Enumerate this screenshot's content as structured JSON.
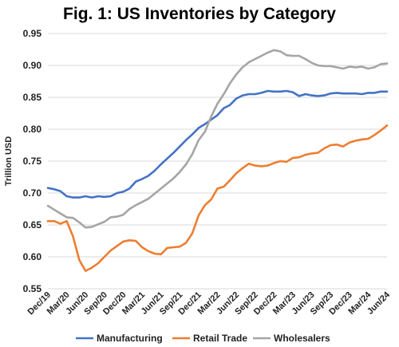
{
  "chart_data": {
    "type": "line",
    "title": "Fig. 1: US Inventories by Category",
    "xlabel": "",
    "ylabel": "Trillion USD",
    "ylim": [
      0.55,
      0.95
    ],
    "yticks": [
      "0.55",
      "0.60",
      "0.65",
      "0.70",
      "0.75",
      "0.80",
      "0.85",
      "0.90",
      "0.95"
    ],
    "x_tick_labels": [
      "Dec/19",
      "Mar/20",
      "Jun/20",
      "Sep/20",
      "Dec/20",
      "Mar/21",
      "Jun/21",
      "Sep/21",
      "Dec/21",
      "Mar/22",
      "Jun/22",
      "Sep/22",
      "Dec/22",
      "Mar/23",
      "Jun/23",
      "Sep/23",
      "Dec/23",
      "Mar/24",
      "Jun/24"
    ],
    "x": [
      "Dec/19",
      "Jan/20",
      "Feb/20",
      "Mar/20",
      "Apr/20",
      "May/20",
      "Jun/20",
      "Jul/20",
      "Aug/20",
      "Sep/20",
      "Oct/20",
      "Nov/20",
      "Dec/20",
      "Jan/21",
      "Feb/21",
      "Mar/21",
      "Apr/21",
      "May/21",
      "Jun/21",
      "Jul/21",
      "Aug/21",
      "Sep/21",
      "Oct/21",
      "Nov/21",
      "Dec/21",
      "Jan/22",
      "Feb/22",
      "Mar/22",
      "Apr/22",
      "May/22",
      "Jun/22",
      "Jul/22",
      "Aug/22",
      "Sep/22",
      "Oct/22",
      "Nov/22",
      "Dec/22",
      "Jan/23",
      "Feb/23",
      "Mar/23",
      "Apr/23",
      "May/23",
      "Jun/23",
      "Jul/23",
      "Aug/23",
      "Sep/23",
      "Oct/23",
      "Nov/23",
      "Dec/23",
      "Jan/24",
      "Feb/24",
      "Mar/24",
      "Apr/24",
      "May/24",
      "Jun/24"
    ],
    "grid": true,
    "legend_position": "bottom",
    "series": [
      {
        "name": "Manufacturing",
        "color": "#4472C4",
        "values": [
          0.708,
          0.706,
          0.703,
          0.695,
          0.693,
          0.693,
          0.695,
          0.693,
          0.695,
          0.694,
          0.695,
          0.7,
          0.702,
          0.707,
          0.718,
          0.722,
          0.727,
          0.735,
          0.745,
          0.754,
          0.763,
          0.773,
          0.783,
          0.792,
          0.802,
          0.808,
          0.815,
          0.822,
          0.833,
          0.838,
          0.848,
          0.853,
          0.855,
          0.855,
          0.857,
          0.86,
          0.859,
          0.859,
          0.86,
          0.858,
          0.852,
          0.855,
          0.853,
          0.852,
          0.853,
          0.856,
          0.857,
          0.856,
          0.856,
          0.856,
          0.855,
          0.857,
          0.857,
          0.859,
          0.859
        ]
      },
      {
        "name": "Retail Trade",
        "color": "#ED7D31",
        "values": [
          0.656,
          0.656,
          0.652,
          0.656,
          0.632,
          0.595,
          0.578,
          0.583,
          0.59,
          0.6,
          0.61,
          0.617,
          0.624,
          0.626,
          0.625,
          0.615,
          0.609,
          0.605,
          0.604,
          0.614,
          0.615,
          0.616,
          0.622,
          0.637,
          0.665,
          0.681,
          0.69,
          0.707,
          0.71,
          0.72,
          0.731,
          0.739,
          0.746,
          0.743,
          0.742,
          0.743,
          0.747,
          0.75,
          0.749,
          0.755,
          0.756,
          0.76,
          0.762,
          0.763,
          0.77,
          0.775,
          0.776,
          0.773,
          0.779,
          0.782,
          0.784,
          0.785,
          0.791,
          0.798,
          0.806
        ]
      },
      {
        "name": "Wholesalers",
        "color": "#A5A5A5",
        "values": [
          0.68,
          0.674,
          0.668,
          0.662,
          0.661,
          0.654,
          0.646,
          0.647,
          0.651,
          0.655,
          0.662,
          0.663,
          0.666,
          0.675,
          0.681,
          0.686,
          0.691,
          0.699,
          0.707,
          0.715,
          0.723,
          0.733,
          0.745,
          0.761,
          0.783,
          0.796,
          0.82,
          0.84,
          0.855,
          0.872,
          0.886,
          0.897,
          0.905,
          0.91,
          0.915,
          0.92,
          0.924,
          0.922,
          0.916,
          0.915,
          0.915,
          0.91,
          0.904,
          0.9,
          0.899,
          0.899,
          0.897,
          0.895,
          0.898,
          0.897,
          0.898,
          0.895,
          0.897,
          0.902,
          0.903
        ]
      }
    ]
  }
}
